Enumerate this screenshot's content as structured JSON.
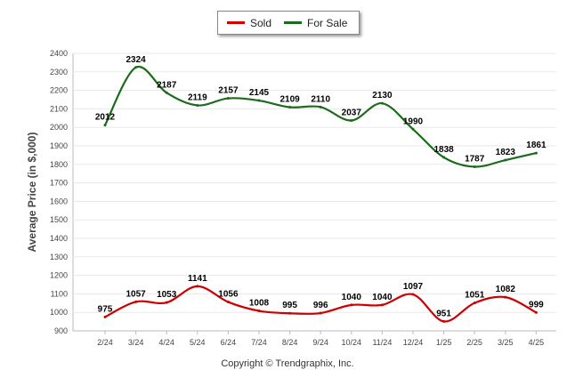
{
  "legend": {
    "sold": "Sold",
    "for_sale": "For Sale"
  },
  "copyright": "Copyright © Trendgraphix, Inc.",
  "colors": {
    "sold": "#cc0000",
    "for_sale": "#1a6b1a",
    "grid": "#e8e8e8"
  },
  "chart_data": {
    "type": "line",
    "title": "",
    "xlabel": "",
    "ylabel": "Average Price (in $,000)",
    "ylim": [
      900,
      2400
    ],
    "yticks": [
      900,
      1000,
      1100,
      1200,
      1300,
      1400,
      1500,
      1600,
      1700,
      1800,
      1900,
      2000,
      2100,
      2200,
      2300,
      2400
    ],
    "categories": [
      "2/24",
      "3/24",
      "4/24",
      "5/24",
      "6/24",
      "7/24",
      "8/24",
      "9/24",
      "10/24",
      "11/24",
      "12/24",
      "1/25",
      "2/25",
      "3/25",
      "4/25"
    ],
    "series": [
      {
        "name": "Sold",
        "values": [
          975,
          1057,
          1053,
          1141,
          1056,
          1008,
          995,
          996,
          1040,
          1040,
          1097,
          951,
          1051,
          1082,
          999
        ]
      },
      {
        "name": "For Sale",
        "values": [
          2012,
          2324,
          2187,
          2119,
          2157,
          2145,
          2109,
          2110,
          2037,
          2130,
          1990,
          1838,
          1787,
          1823,
          1861
        ]
      }
    ],
    "grid": true,
    "legend_position": "top-center"
  }
}
